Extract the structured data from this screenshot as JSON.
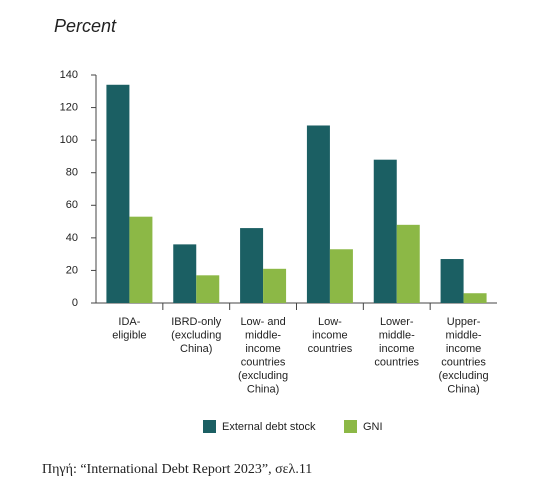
{
  "chart_data": {
    "type": "bar",
    "ylabel": "Percent",
    "categories": [
      "IDA-\neligible",
      "IBRD-only\n(excluding\nChina)",
      "Low- and\nmiddle-\nincome\ncountries\n(excluding\nChina)",
      "Low-\nincome\ncountries",
      "Lower-\nmiddle-\nincome\ncountries",
      "Upper-\nmiddle-\nincome\ncountries\n(excluding\nChina)"
    ],
    "series": [
      {
        "name": "External debt stock",
        "color": "#1b5f63",
        "values": [
          134,
          36,
          46,
          109,
          88,
          27
        ]
      },
      {
        "name": "GNI",
        "color": "#8cb846",
        "values": [
          53,
          17,
          21,
          33,
          48,
          6
        ]
      }
    ],
    "ylim": [
      0,
      140
    ],
    "yticks": [
      0,
      20,
      40,
      60,
      80,
      100,
      120,
      140
    ],
    "grid": false,
    "legend": "bottom"
  },
  "source": "Πηγή: “International Debt Report 2023”, σελ.11"
}
